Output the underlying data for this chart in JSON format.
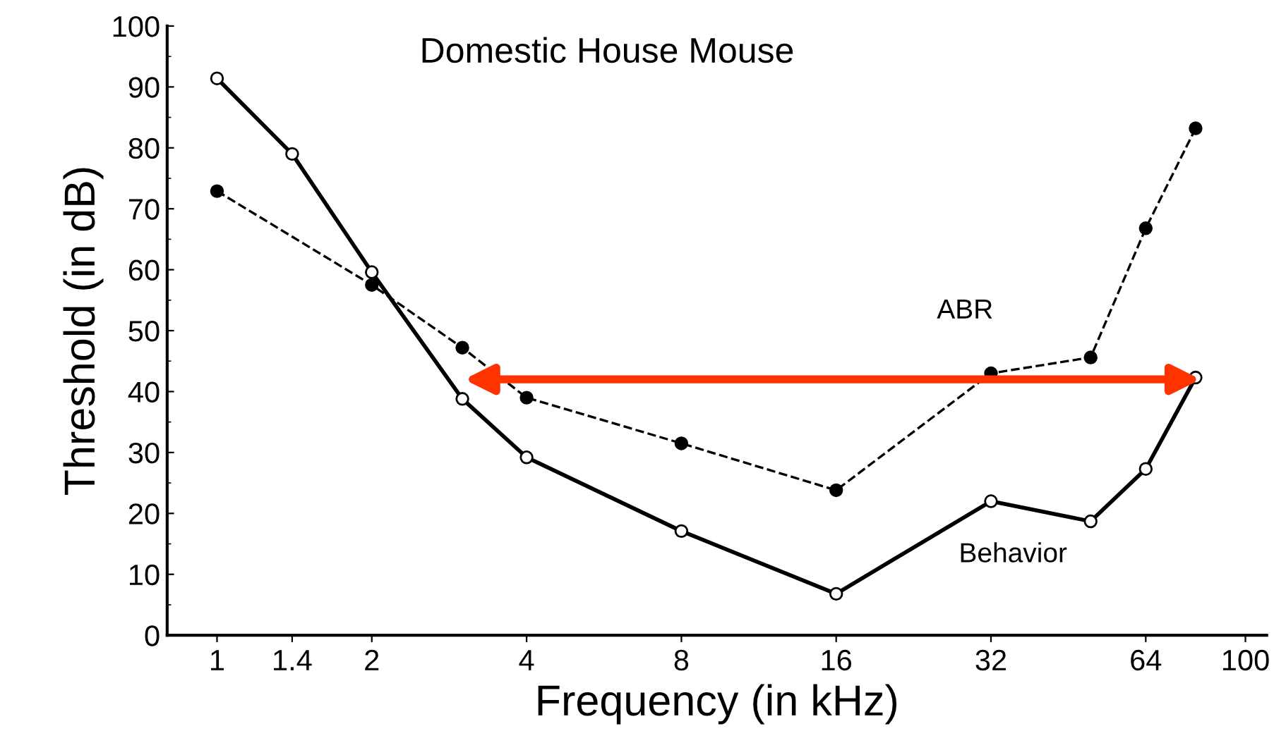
{
  "chart_data": {
    "type": "line",
    "title": "Domestic House Mouse",
    "xlabel": "Frequency (in kHz)",
    "ylabel": "Threshold (in dB)",
    "log": "x",
    "xlim": [
      0.8,
      110
    ],
    "xticks": [
      1,
      1.4,
      2,
      4,
      8,
      16,
      32,
      64,
      100
    ],
    "ylim": [
      0,
      100
    ],
    "yticks": [
      0,
      10,
      20,
      30,
      40,
      50,
      60,
      70,
      80,
      90,
      100
    ],
    "grid": false,
    "legend": false,
    "series": [
      {
        "name": "Behavior",
        "color": "#000000",
        "marker": "circle",
        "line_style": "solid",
        "x": [
          1,
          1.4,
          2,
          3,
          4,
          8,
          16,
          32,
          50,
          64,
          80
        ],
        "values": [
          91.4,
          79,
          59.6,
          38.8,
          29.2,
          17.1,
          6.8,
          22,
          18.7,
          27.3,
          42.3
        ]
      },
      {
        "name": "ABR",
        "color": "#000000",
        "marker": "circle",
        "line_style": "dashed",
        "x": [
          1,
          2,
          3,
          4,
          8,
          16,
          32,
          50,
          64,
          80
        ],
        "values": [
          72.9,
          57.5,
          47.2,
          39,
          31.5,
          23.8,
          43,
          45.6,
          66.8,
          83.2
        ]
      }
    ]
  }
}
